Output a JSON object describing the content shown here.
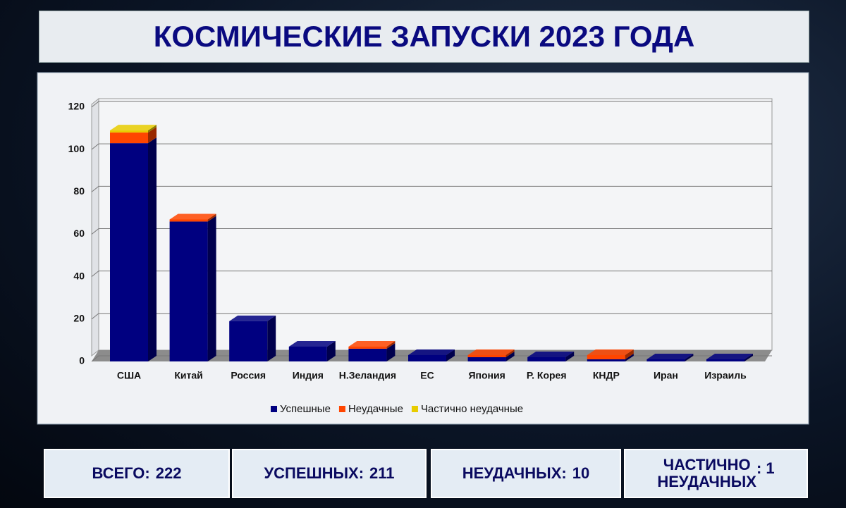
{
  "chart_data": {
    "type": "bar3d-stacked",
    "title": "КОСМИЧЕСКИЕ ЗАПУСКИ 2023 ГОДА",
    "categories": [
      "США",
      "Китай",
      "Россия",
      "Индия",
      "Н.Зеландия",
      "ЕС",
      "Япония",
      "Р. Корея",
      "КНДР",
      "Иран",
      "Израиль"
    ],
    "series": [
      {
        "name": "Успешные",
        "color": "#000080",
        "values": [
          103,
          66,
          19,
          7,
          6,
          3,
          2,
          2,
          1,
          1,
          1
        ]
      },
      {
        "name": "Неудачные",
        "color": "#ff4500",
        "values": [
          5,
          1,
          0,
          0,
          1,
          0,
          1,
          0,
          2,
          0,
          0
        ]
      },
      {
        "name": "Частично неудачные",
        "color": "#e8cc00",
        "values": [
          1,
          0,
          0,
          0,
          0,
          0,
          0,
          0,
          0,
          0,
          0
        ]
      }
    ],
    "ylim": [
      0,
      120
    ],
    "yticks": [
      0,
      20,
      40,
      60,
      80,
      100,
      120
    ],
    "grid": true,
    "legend": "bottom"
  },
  "summary": [
    {
      "label": "ВСЕГО:",
      "value": 222
    },
    {
      "label": "УСПЕШНЫХ:",
      "value": 211
    },
    {
      "label": "НЕУДАЧНЫХ:",
      "value": 10
    },
    {
      "label": [
        "ЧАСТИЧНО",
        "НЕУДАЧНЫХ"
      ],
      "value": 1,
      "value_label": ": 1"
    }
  ]
}
